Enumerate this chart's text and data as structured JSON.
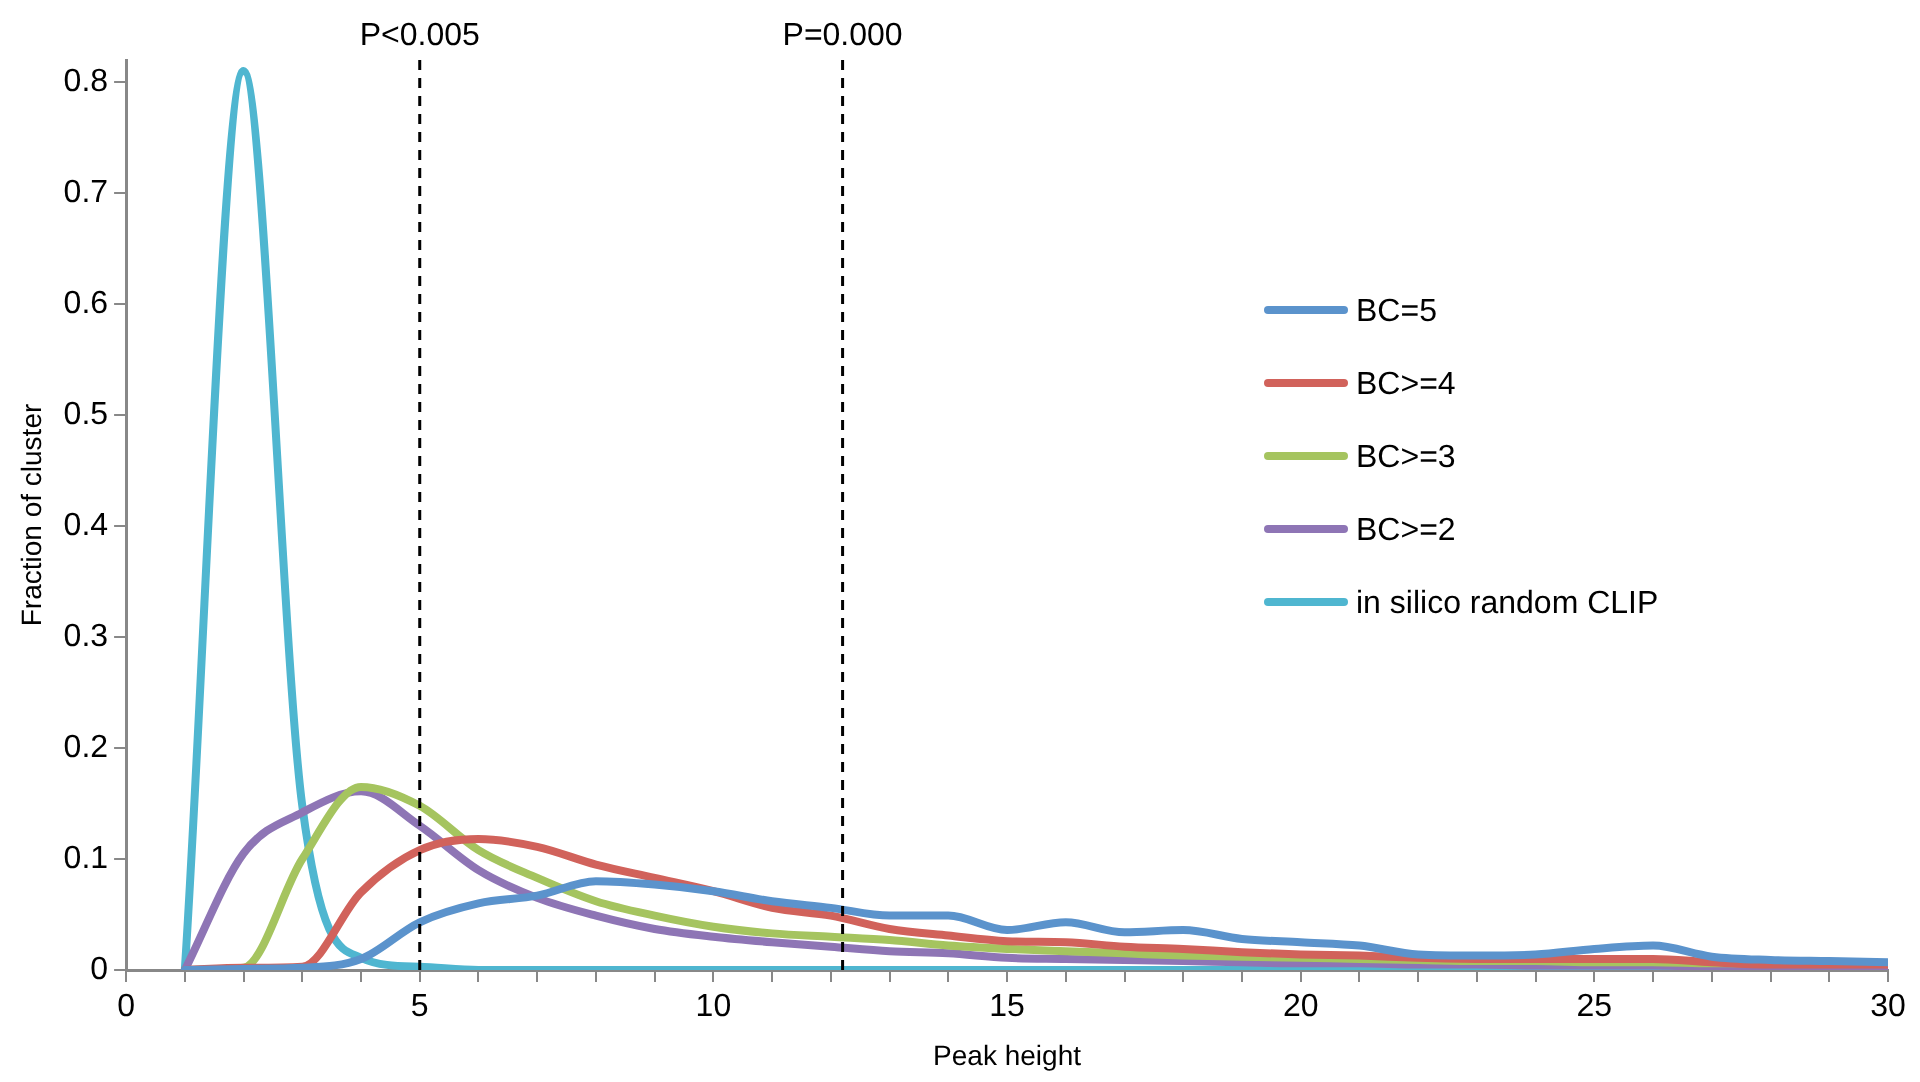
{
  "chart_data": {
    "type": "line",
    "xlabel": "Peak height",
    "ylabel": "Fraction of cluster",
    "x": [
      1,
      2,
      3,
      4,
      5,
      6,
      7,
      8,
      9,
      10,
      11,
      12,
      13,
      14,
      15,
      16,
      17,
      18,
      19,
      20,
      21,
      22,
      23,
      24,
      25,
      26,
      27,
      28,
      29,
      30
    ],
    "xlim": [
      0,
      30
    ],
    "xticks": [
      0,
      {
        "value": 1,
        "label": null
      },
      {
        "value": 2,
        "label": null
      },
      {
        "value": 3,
        "label": null
      },
      {
        "value": 4,
        "label": null
      },
      5,
      {
        "value": 6,
        "label": null
      },
      {
        "value": 7,
        "label": null
      },
      {
        "value": 8,
        "label": null
      },
      {
        "value": 9,
        "label": null
      },
      10,
      {
        "value": 11,
        "label": null
      },
      {
        "value": 12,
        "label": null
      },
      {
        "value": 13,
        "label": null
      },
      {
        "value": 14,
        "label": null
      },
      15,
      {
        "value": 16,
        "label": null
      },
      {
        "value": 17,
        "label": null
      },
      {
        "value": 18,
        "label": null
      },
      {
        "value": 19,
        "label": null
      },
      20,
      {
        "value": 21,
        "label": null
      },
      {
        "value": 22,
        "label": null
      },
      {
        "value": 23,
        "label": null
      },
      {
        "value": 24,
        "label": null
      },
      25,
      {
        "value": 26,
        "label": null
      },
      {
        "value": 27,
        "label": null
      },
      {
        "value": 28,
        "label": null
      },
      {
        "value": 29,
        "label": null
      },
      30
    ],
    "ylim": [
      0,
      0.82
    ],
    "yticks": [
      0,
      0.1,
      0.2,
      0.3,
      0.4,
      0.5,
      0.6,
      0.7,
      0.8
    ],
    "grid": false,
    "legend": "right",
    "marker": "none",
    "line_style": "solid",
    "series": [
      {
        "name": "BC=5",
        "color": "#5b93cc",
        "values": [
          0,
          0.001,
          0.002,
          0.01,
          0.043,
          0.06,
          0.067,
          0.08,
          0.077,
          0.071,
          0.062,
          0.056,
          0.049,
          0.049,
          0.036,
          0.043,
          0.034,
          0.036,
          0.028,
          0.025,
          0.022,
          0.014,
          0.013,
          0.014,
          0.019,
          0.022,
          0.012,
          0.009,
          0.008,
          0.007
        ]
      },
      {
        "name": "BC>=4",
        "color": "#d1625b",
        "values": [
          0,
          0.002,
          0.003,
          0.07,
          0.108,
          0.118,
          0.111,
          0.095,
          0.083,
          0.071,
          0.056,
          0.049,
          0.037,
          0.031,
          0.026,
          0.025,
          0.021,
          0.019,
          0.016,
          0.014,
          0.013,
          0.011,
          0.01,
          0.01,
          0.01,
          0.01,
          0.007,
          0.005,
          0.005,
          0.005
        ]
      },
      {
        "name": "BC>=3",
        "color": "#a5c45f",
        "values": [
          0,
          0.002,
          0.1,
          0.165,
          0.148,
          0.108,
          0.083,
          0.062,
          0.049,
          0.039,
          0.033,
          0.03,
          0.027,
          0.022,
          0.019,
          0.017,
          0.015,
          0.013,
          0.012,
          0.011,
          0.01,
          0.009,
          0.008,
          0.008,
          0.007,
          0.007,
          0.006,
          0.006,
          null,
          null
        ]
      },
      {
        "name": "BC>=2",
        "color": "#8e75b5",
        "values": [
          0,
          0.105,
          0.142,
          0.161,
          0.13,
          0.09,
          0.065,
          0.049,
          0.037,
          0.03,
          0.025,
          0.021,
          0.017,
          0.015,
          0.011,
          0.01,
          0.009,
          0.008,
          0.007,
          0.006,
          0.006,
          0.005,
          0.005,
          0.004,
          0.004,
          0.004,
          0.003,
          0.003,
          0.003,
          0.003
        ]
      },
      {
        "name": "in silico random CLIP",
        "color": "#4fb6d0",
        "values": [
          0,
          0.81,
          0.148,
          0.011,
          0.003,
          0,
          0,
          0,
          0,
          0,
          0,
          0,
          0,
          0,
          0,
          0,
          0,
          0,
          0,
          0,
          0,
          0,
          0,
          0,
          0,
          0,
          0,
          0,
          0,
          0
        ]
      }
    ],
    "annotations": [
      "P<0.005",
      "P=0.000"
    ],
    "ref_lines": [
      {
        "axis": "x",
        "value": 5,
        "line_style": "dashed",
        "color": "#000000"
      },
      {
        "axis": "x",
        "value": 12.2,
        "line_style": "dashed",
        "color": "#000000"
      }
    ]
  }
}
